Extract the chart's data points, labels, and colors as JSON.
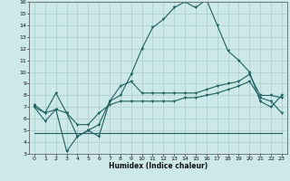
{
  "xlabel": "Humidex (Indice chaleur)",
  "x": [
    0,
    1,
    2,
    3,
    4,
    5,
    6,
    7,
    8,
    9,
    10,
    11,
    12,
    13,
    14,
    15,
    16,
    17,
    18,
    19,
    20,
    21,
    22,
    23
  ],
  "y_max": [
    7.0,
    5.8,
    6.8,
    3.2,
    4.5,
    5.0,
    4.5,
    7.5,
    8.0,
    9.8,
    12.0,
    13.8,
    14.5,
    15.5,
    16.0,
    15.5,
    16.2,
    14.0,
    11.8,
    11.0,
    10.0,
    7.5,
    7.0,
    8.0
  ],
  "y_upper": [
    7.2,
    6.5,
    8.2,
    6.5,
    4.5,
    5.0,
    5.5,
    7.5,
    8.8,
    9.2,
    8.2,
    8.2,
    8.2,
    8.2,
    8.2,
    8.2,
    8.5,
    8.8,
    9.0,
    9.2,
    9.8,
    8.0,
    8.0,
    7.8
  ],
  "y_mean": [
    7.0,
    6.5,
    6.8,
    6.5,
    5.5,
    5.5,
    6.5,
    7.2,
    7.5,
    7.5,
    7.5,
    7.5,
    7.5,
    7.5,
    7.8,
    7.8,
    8.0,
    8.2,
    8.5,
    8.8,
    9.2,
    7.8,
    7.5,
    6.5
  ],
  "y_lower": [
    4.8,
    4.8,
    4.8,
    4.8,
    4.8,
    4.8,
    4.8,
    4.8,
    4.8,
    4.8,
    4.8,
    4.8,
    4.8,
    4.8,
    4.8,
    4.8,
    4.8,
    4.8,
    4.8,
    4.8,
    4.8,
    4.8,
    4.8,
    4.8
  ],
  "ylim": [
    3,
    16
  ],
  "xlim": [
    -0.5,
    23.5
  ],
  "bg_color": "#cce8e8",
  "line_color": "#206060",
  "grid_color": "#aacccc",
  "xticks": [
    0,
    1,
    2,
    3,
    4,
    5,
    6,
    7,
    8,
    9,
    10,
    11,
    12,
    13,
    14,
    15,
    16,
    17,
    18,
    19,
    20,
    21,
    22,
    23
  ],
  "yticks": [
    3,
    4,
    5,
    6,
    7,
    8,
    9,
    10,
    11,
    12,
    13,
    14,
    15,
    16
  ]
}
